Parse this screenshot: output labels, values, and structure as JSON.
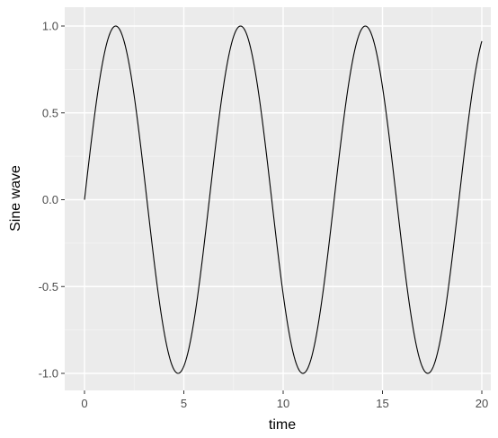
{
  "chart_data": {
    "type": "line",
    "xlabel": "time",
    "ylabel": "Sine wave",
    "xlim": [
      0,
      20
    ],
    "ylim": [
      -1,
      1
    ],
    "x_ticks": [
      0,
      5,
      10,
      15,
      20
    ],
    "x_tick_labels": [
      "0",
      "5",
      "10",
      "15",
      "20"
    ],
    "y_ticks": [
      -1.0,
      -0.5,
      0.0,
      0.5,
      1.0
    ],
    "y_tick_labels": [
      "-1.0",
      "-0.5",
      "0.0",
      "0.5",
      "1.0"
    ],
    "grid": true,
    "legend": "none",
    "function": "y = sin(x)",
    "series": [
      {
        "color": "#000000",
        "x": [
          0,
          0.5,
          1,
          1.5,
          2,
          2.5,
          3,
          3.5,
          4,
          4.5,
          5,
          5.5,
          6,
          6.5,
          7,
          7.5,
          8,
          8.5,
          9,
          9.5,
          10,
          10.5,
          11,
          11.5,
          12,
          12.5,
          13,
          13.5,
          14,
          14.5,
          15,
          15.5,
          16,
          16.5,
          17,
          17.5,
          18,
          18.5,
          19,
          19.5,
          20
        ],
        "y": [
          0,
          0.479,
          0.841,
          0.997,
          0.909,
          0.598,
          0.141,
          -0.351,
          -0.757,
          -0.978,
          -0.959,
          -0.706,
          -0.279,
          0.215,
          0.657,
          0.938,
          0.989,
          0.798,
          0.412,
          -0.075,
          -0.544,
          -0.88,
          -1.0,
          -0.875,
          -0.537,
          -0.066,
          0.42,
          0.803,
          0.991,
          0.935,
          0.65,
          0.207,
          -0.288,
          -0.712,
          -0.961,
          -0.977,
          -0.751,
          -0.342,
          0.15,
          0.605,
          0.913
        ]
      }
    ],
    "colors": {
      "panel": "#ebebeb",
      "grid_major": "#ffffff",
      "line": "#000000",
      "tick_text": "#4d4d4d",
      "tick_mark": "#333333"
    }
  }
}
